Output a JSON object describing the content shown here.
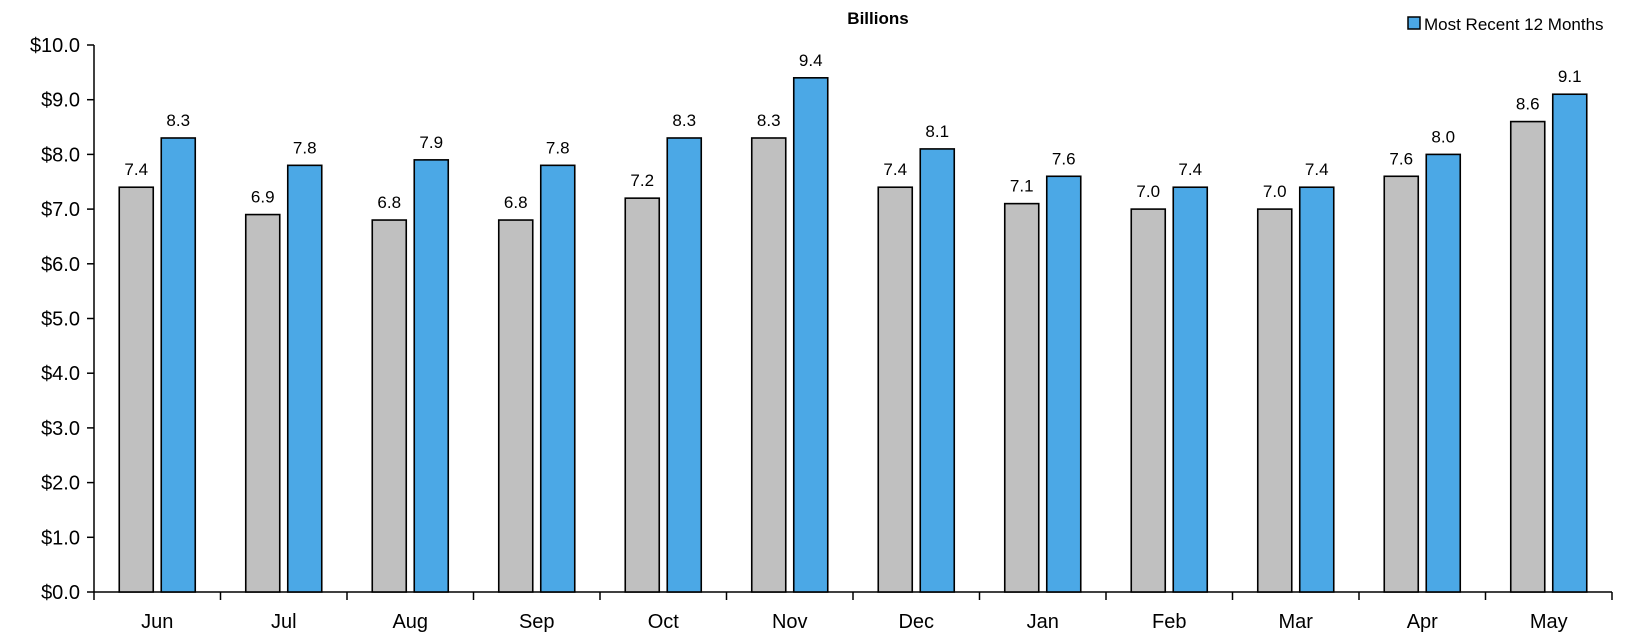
{
  "chart_data": {
    "type": "bar",
    "title": "Billions",
    "xlabel": "",
    "ylabel": "",
    "categories": [
      "Jun",
      "Jul",
      "Aug",
      "Sep",
      "Oct",
      "Nov",
      "Dec",
      "Jan",
      "Feb",
      "Mar",
      "Apr",
      "May"
    ],
    "series": [
      {
        "color": "#c0c0c0",
        "values": [
          7.4,
          6.9,
          6.8,
          6.8,
          7.2,
          8.3,
          7.4,
          7.1,
          7.0,
          7.0,
          7.6,
          8.6
        ]
      },
      {
        "name": "Most Recent 12 Months",
        "color": "#4ba8e6",
        "values": [
          8.3,
          7.8,
          7.9,
          7.8,
          8.3,
          9.4,
          8.1,
          7.6,
          7.4,
          7.4,
          8.0,
          9.1
        ]
      }
    ],
    "ylim": [
      0,
      10
    ],
    "yticks": [
      "$0.0",
      "$1.0",
      "$2.0",
      "$3.0",
      "$4.0",
      "$5.0",
      "$6.0",
      "$7.0",
      "$8.0",
      "$9.0",
      "$10.0"
    ],
    "grid": false,
    "legend": "top-right"
  }
}
